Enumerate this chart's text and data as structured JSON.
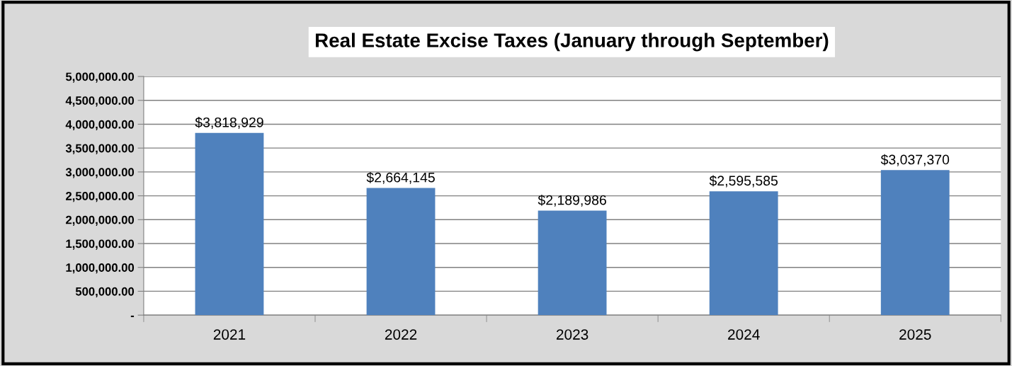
{
  "chart_data": {
    "type": "bar",
    "title": "Real Estate Excise Taxes (January through September)",
    "categories": [
      "2021",
      "2022",
      "2023",
      "2024",
      "2025"
    ],
    "values": [
      3818929,
      2664145,
      2189986,
      2595585,
      3037370
    ],
    "value_labels": [
      "$3,818,929",
      "$2,664,145",
      "$2,189,986",
      "$2,595,585",
      "$3,037,370"
    ],
    "color": "#4f81bd",
    "ylim": [
      0,
      5000000
    ],
    "yticks": [
      {
        "value": 0,
        "label": "-"
      },
      {
        "value": 500000,
        "label": "500,000.00"
      },
      {
        "value": 1000000,
        "label": "1,000,000.00"
      },
      {
        "value": 1500000,
        "label": "1,500,000.00"
      },
      {
        "value": 2000000,
        "label": "2,000,000.00"
      },
      {
        "value": 2500000,
        "label": "2,500,000.00"
      },
      {
        "value": 3000000,
        "label": "3,000,000.00"
      },
      {
        "value": 3500000,
        "label": "3,500,000.00"
      },
      {
        "value": 4000000,
        "label": "4,000,000.00"
      },
      {
        "value": 4500000,
        "label": "4,500,000.00"
      },
      {
        "value": 5000000,
        "label": "5,000,000.00"
      }
    ],
    "grid": "y"
  }
}
